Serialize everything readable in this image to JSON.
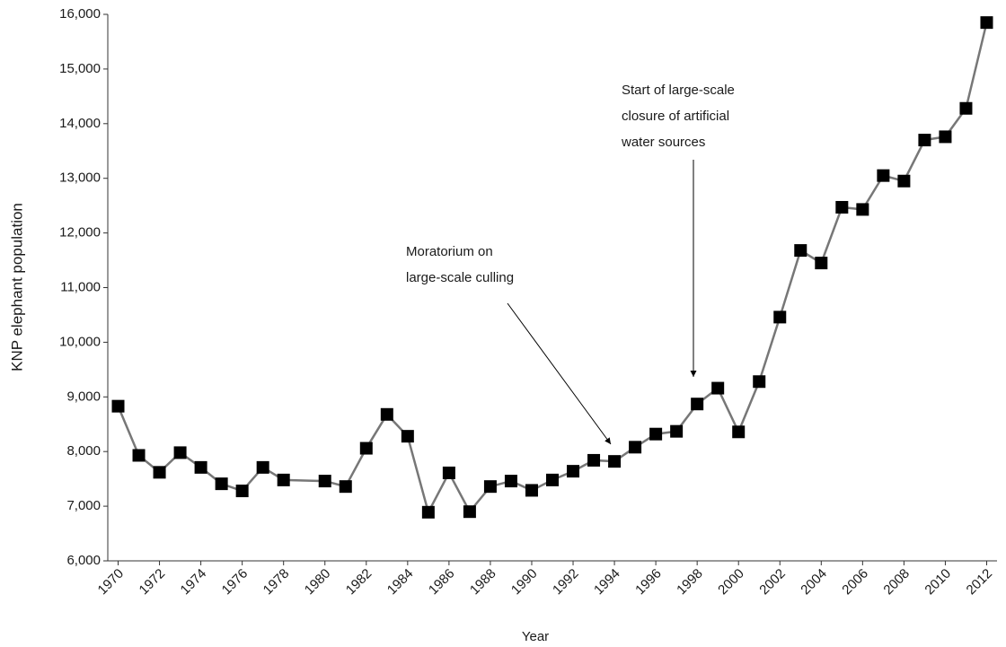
{
  "chart_data": {
    "type": "line",
    "x_label": "Year",
    "y_label": "KNP elephant population",
    "x": [
      1970,
      1971,
      1972,
      1973,
      1974,
      1975,
      1976,
      1977,
      1978,
      1980,
      1981,
      1982,
      1983,
      1984,
      1985,
      1986,
      1987,
      1988,
      1989,
      1990,
      1991,
      1992,
      1993,
      1994,
      1995,
      1996,
      1997,
      1998,
      1999,
      2000,
      2001,
      2002,
      2003,
      2004,
      2005,
      2006,
      2007,
      2008,
      2009,
      2010,
      2011,
      2012
    ],
    "series": [
      {
        "line_color": "#777777",
        "marker_color": "#000000",
        "values": [
          8830,
          7930,
          7620,
          7980,
          7710,
          7410,
          7280,
          7710,
          7480,
          7460,
          7360,
          8060,
          8680,
          8280,
          6890,
          7610,
          6900,
          7360,
          7460,
          7290,
          7480,
          7640,
          7840,
          7820,
          8080,
          8320,
          8370,
          8870,
          9160,
          8360,
          9280,
          10460,
          11680,
          11450,
          12470,
          12430,
          13050,
          12950,
          13700,
          13760,
          14280,
          15850
        ]
      }
    ],
    "xlim": [
      1969.5,
      2012.5
    ],
    "xticks": [
      1970,
      1972,
      1974,
      1976,
      1978,
      1980,
      1982,
      1984,
      1986,
      1988,
      1990,
      1992,
      1994,
      1996,
      1998,
      2000,
      2002,
      2004,
      2006,
      2008,
      2010,
      2012
    ],
    "ylim": [
      6000,
      16000
    ],
    "yticks": [
      {
        "value": 6000,
        "label": "6,000"
      },
      {
        "value": 7000,
        "label": "7,000"
      },
      {
        "value": 8000,
        "label": "8,000"
      },
      {
        "value": 9000,
        "label": "9,000"
      },
      {
        "value": 10000,
        "label": "10,000"
      },
      {
        "value": 11000,
        "label": "11,000"
      },
      {
        "value": 12000,
        "label": "12,000"
      },
      {
        "value": 13000,
        "label": "13,000"
      },
      {
        "value": 14000,
        "label": "14,000"
      },
      {
        "value": 15000,
        "label": "15,000"
      },
      {
        "value": 16000,
        "label": "16,000"
      }
    ],
    "annotations": [
      {
        "lines": [
          "Moratorium on",
          "large-scale culling"
        ]
      },
      {
        "lines": [
          "Start of large-scale",
          "closure of artificial",
          "water sources"
        ]
      }
    ]
  }
}
